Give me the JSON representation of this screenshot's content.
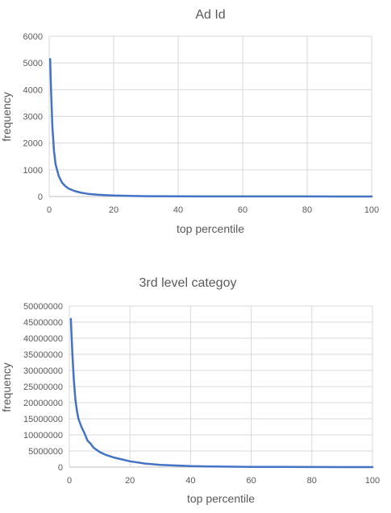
{
  "chart_data": [
    {
      "type": "line",
      "title": "Ad Id",
      "xlabel": "top percentile",
      "ylabel": "frequency",
      "xlim": [
        0,
        100
      ],
      "ylim": [
        0,
        6000
      ],
      "x_ticks": [
        0,
        20,
        40,
        60,
        80,
        100
      ],
      "y_ticks": [
        0,
        1000,
        2000,
        3000,
        4000,
        5000,
        6000
      ],
      "grid": true,
      "legend": "none",
      "series": [
        {
          "color": "#4472c4",
          "x": [
            0.3,
            0.6,
            1,
            1.5,
            2,
            3,
            4,
            5,
            6,
            8,
            10,
            12,
            15,
            20,
            25,
            30,
            40,
            50,
            60,
            70,
            80,
            90,
            100
          ],
          "y": [
            5150,
            3900,
            2600,
            1700,
            1200,
            750,
            520,
            390,
            300,
            200,
            140,
            100,
            65,
            35,
            20,
            12,
            6,
            4,
            3,
            2,
            2,
            1,
            1
          ]
        }
      ]
    },
    {
      "type": "line",
      "title": "3rd level categoy",
      "xlabel": "top percentile",
      "ylabel": "frequency",
      "xlim": [
        0,
        100
      ],
      "ylim": [
        0,
        50000000
      ],
      "x_ticks": [
        0,
        20,
        40,
        60,
        80,
        100
      ],
      "y_ticks": [
        0,
        5000000,
        10000000,
        15000000,
        20000000,
        25000000,
        30000000,
        35000000,
        40000000,
        45000000,
        50000000
      ],
      "grid": true,
      "legend": "none",
      "series": [
        {
          "color": "#4472c4",
          "x": [
            0.5,
            1,
            1.5,
            2,
            2.5,
            3,
            4,
            5,
            6,
            7,
            8,
            10,
            12,
            15,
            20,
            25,
            30,
            40,
            50,
            60,
            70,
            80,
            90,
            100
          ],
          "y": [
            46000000,
            35000000,
            27000000,
            21000000,
            17500000,
            15000000,
            12500000,
            10500000,
            8200000,
            7300000,
            6000000,
            4700000,
            3800000,
            2900000,
            1800000,
            1100000,
            700000,
            300000,
            150000,
            80000,
            40000,
            20000,
            10000,
            5000
          ]
        }
      ]
    }
  ]
}
